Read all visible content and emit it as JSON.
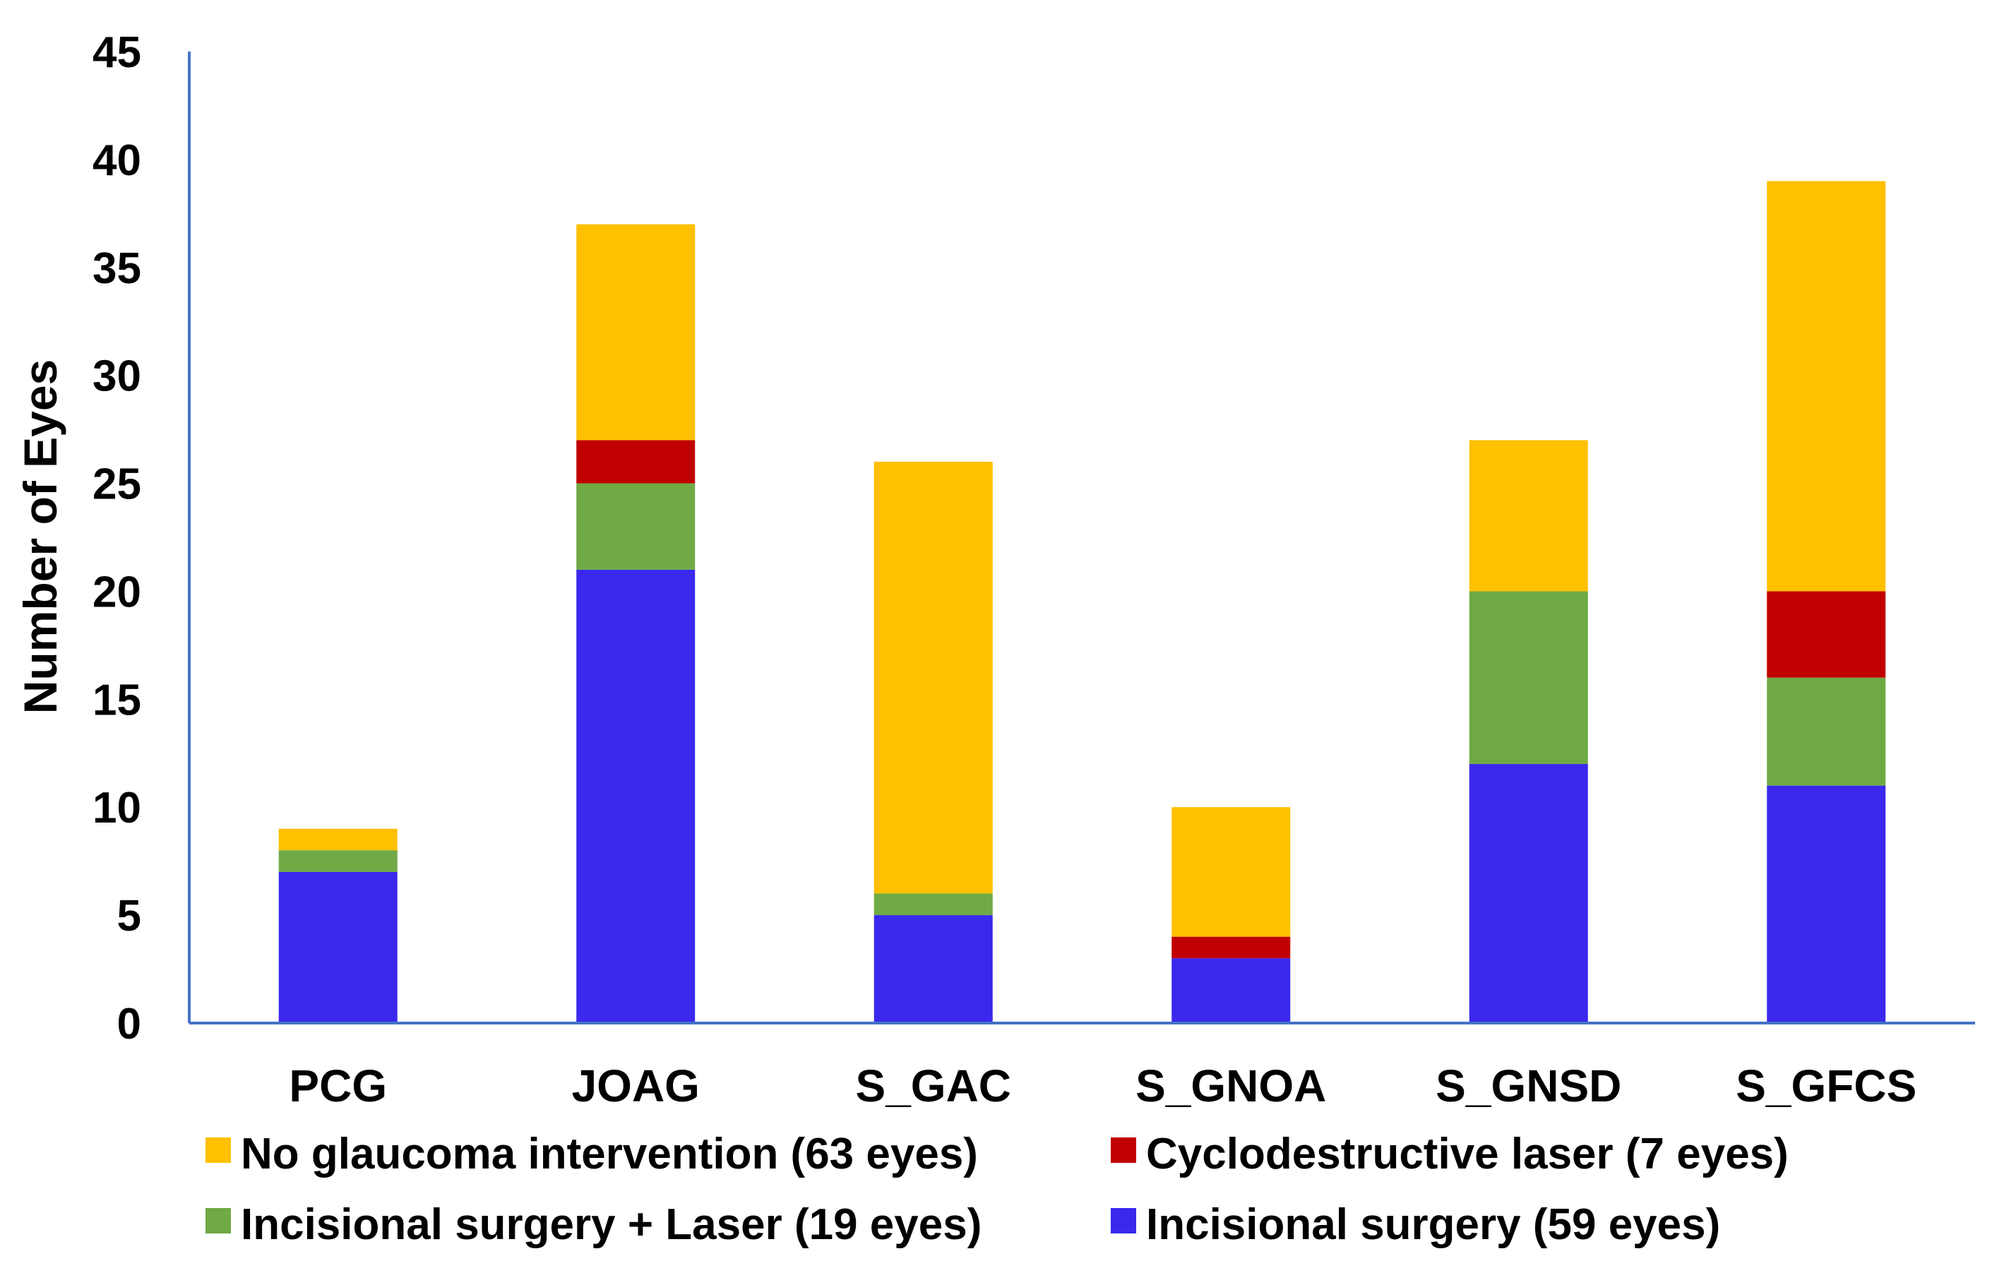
{
  "chart_data": {
    "type": "bar",
    "stacked": true,
    "categories": [
      "PCG",
      "JOAG",
      "S_GAC",
      "S_GNOA",
      "S_GNSD",
      "S_GFCS"
    ],
    "series": [
      {
        "name": "Incisional surgery (59 eyes)",
        "color": "#3a29ed",
        "values": [
          7,
          21,
          5,
          3,
          12,
          11
        ]
      },
      {
        "name": "Incisional surgery + Laser (19 eyes)",
        "color": "#6faa45",
        "values": [
          1,
          4,
          1,
          0,
          8,
          5
        ]
      },
      {
        "name": "Cyclodestructive laser (7 eyes)",
        "color": "#c00000",
        "values": [
          0,
          2,
          0,
          1,
          0,
          4
        ]
      },
      {
        "name": "No glaucoma intervention (63 eyes)",
        "color": "#ffc000",
        "values": [
          1,
          10,
          20,
          6,
          7,
          19
        ]
      }
    ],
    "title": "",
    "xlabel": "",
    "ylabel": "Number of Eyes",
    "ylim": [
      0,
      45
    ],
    "yticks": [
      0,
      5,
      10,
      15,
      20,
      25,
      30,
      35,
      40,
      45
    ],
    "grid": false,
    "legend_position": "bottom",
    "legend_order": [
      3,
      2,
      1,
      0
    ],
    "axis_color": "#4472c4"
  }
}
